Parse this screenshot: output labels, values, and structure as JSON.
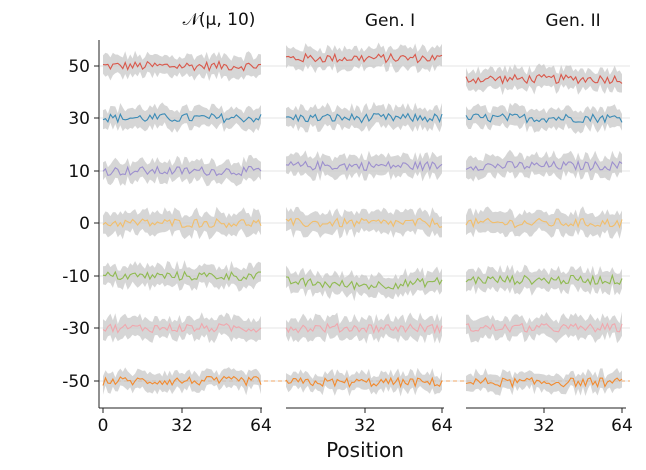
{
  "chart_data": {
    "type": "line",
    "layout": "three panels sharing y axis",
    "xlabel": "Position",
    "ylabel": "",
    "panels": [
      {
        "title": "𝒩(μ, 10)",
        "name": "normal",
        "xlim": [
          0,
          64
        ],
        "xticks": [
          "0",
          "32",
          "64"
        ]
      },
      {
        "title": "Gen. I",
        "name": "gen-1",
        "xlim": [
          0,
          64
        ],
        "xticks": [
          "32",
          "64"
        ]
      },
      {
        "title": "Gen. II",
        "name": "gen-2",
        "xlim": [
          0,
          64
        ],
        "xticks": [
          "32",
          "64"
        ]
      }
    ],
    "y_categories": [
      "50",
      "30",
      "10",
      "0",
      "-10",
      "-30",
      "-50"
    ],
    "series": [
      {
        "name": "50",
        "color": "#d9574a",
        "offsets": [
          0.0,
          0.3,
          -0.5
        ],
        "band": 1.0
      },
      {
        "name": "30",
        "color": "#3b8bb6",
        "offsets": [
          0.0,
          0.0,
          0.0
        ],
        "band": 1.0
      },
      {
        "name": "10",
        "color": "#9c8fce",
        "offsets": [
          0.0,
          0.2,
          0.2
        ],
        "band": 1.0
      },
      {
        "name": "0",
        "color": "#f2be6a",
        "offsets": [
          0.0,
          0.0,
          0.0
        ],
        "band": 1.1
      },
      {
        "name": "-10",
        "color": "#8fba50",
        "offsets": [
          0.0,
          -0.2,
          -0.15
        ],
        "band": 1.0
      },
      {
        "name": "-30",
        "color": "#f0a7ad",
        "offsets": [
          0.0,
          0.0,
          0.0
        ],
        "band": 1.0
      },
      {
        "name": "-50",
        "color": "#f28a2e",
        "offsets": [
          0.0,
          -0.05,
          -0.05
        ],
        "band": 0.8
      }
    ],
    "grid": true,
    "band_color": "#c8c8c8",
    "dashed_baseline": {
      "category": "-50",
      "color": "#f28a2e"
    },
    "legend": "none"
  }
}
